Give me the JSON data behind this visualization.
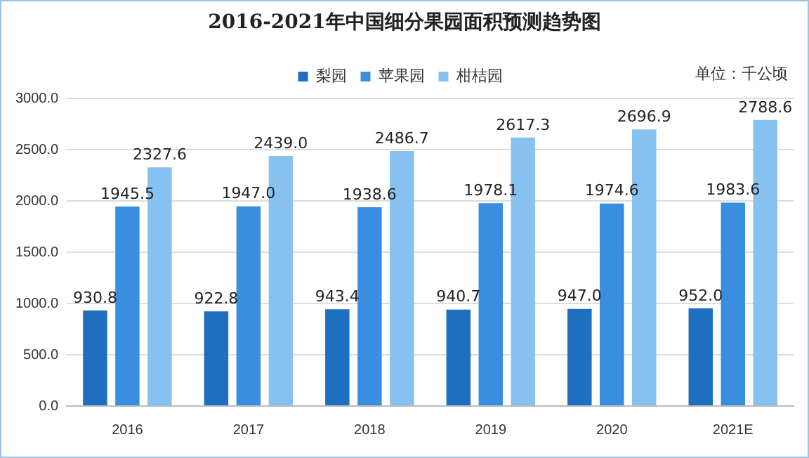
{
  "chart_data": {
    "type": "bar",
    "title": "2016-2021年中国细分果园面积预测趋势图",
    "annotations": [
      "单位：千公顷"
    ],
    "categories": [
      "2016",
      "2017",
      "2018",
      "2019",
      "2020",
      "2021E"
    ],
    "series": [
      {
        "name": "梨园",
        "color": "#1f6fc0",
        "values": [
          930.8,
          922.8,
          943.4,
          940.7,
          947.0,
          952.0
        ]
      },
      {
        "name": "苹果园",
        "color": "#3a8ee0",
        "values": [
          1945.5,
          1947.0,
          1938.6,
          1978.1,
          1974.6,
          1983.6
        ]
      },
      {
        "name": "柑桔园",
        "color": "#86c1f0",
        "values": [
          2327.6,
          2439.0,
          2486.7,
          2617.3,
          2696.9,
          2788.6
        ]
      }
    ],
    "value_labels": [
      [
        "930.8",
        "922.8",
        "943.4",
        "940.7",
        "947.0",
        "952.0"
      ],
      [
        "1945.5",
        "1947.0",
        "1938.6",
        "1978.1",
        "1974.6",
        "1983.6"
      ],
      [
        "2327.6",
        "2439.0",
        "2486.7",
        "2617.3",
        "2696.9",
        "2788.6"
      ]
    ],
    "ylim": [
      0,
      3000
    ],
    "yticks": [
      {
        "value": 0,
        "label": "0.0"
      },
      {
        "value": 500,
        "label": "500.0"
      },
      {
        "value": 1000,
        "label": "1000.0"
      },
      {
        "value": 1500,
        "label": "1500.0"
      },
      {
        "value": 2000,
        "label": "2000.0"
      },
      {
        "value": 2500,
        "label": "2500.0"
      },
      {
        "value": 3000,
        "label": "3000.0"
      }
    ],
    "grid": "y",
    "legend": "top"
  }
}
